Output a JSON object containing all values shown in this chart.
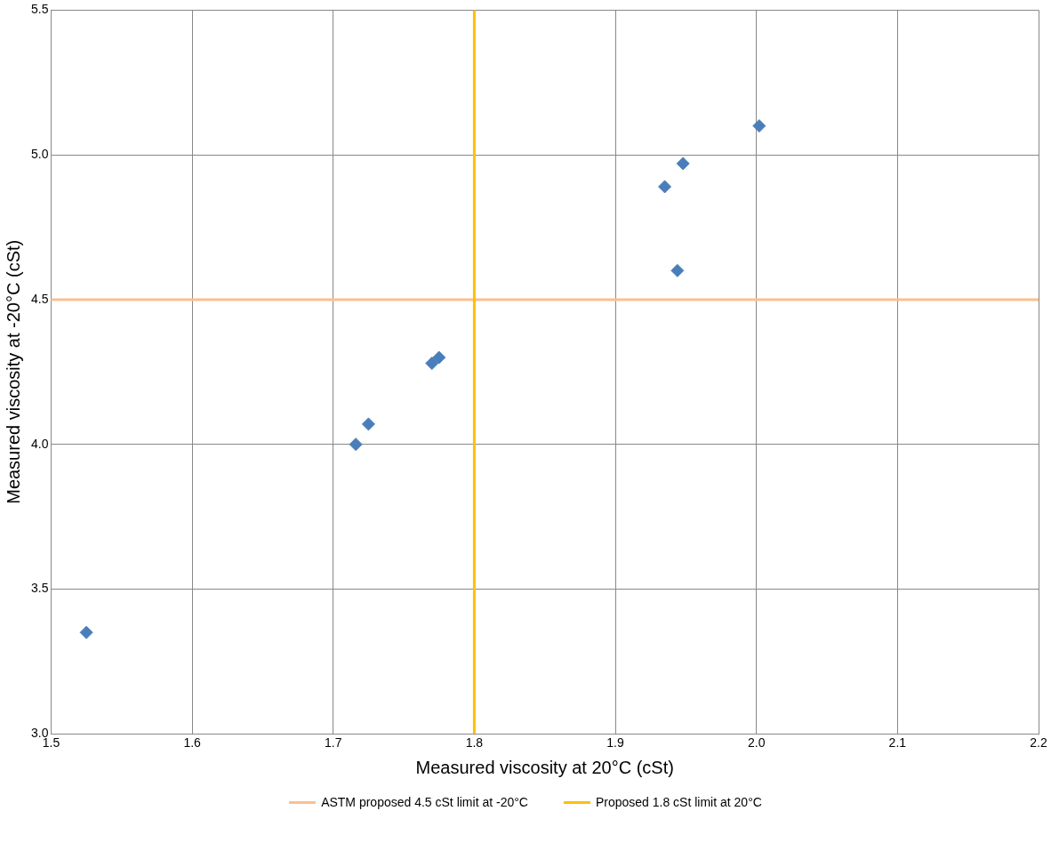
{
  "chart_data": {
    "type": "scatter",
    "xlabel": "Measured viscosity at 20°C (cSt)",
    "ylabel": "Measured viscosity at -20°C (cSt)",
    "x": [
      1.525,
      1.716,
      1.725,
      1.77,
      1.775,
      1.935,
      1.944,
      1.948,
      2.002
    ],
    "values": [
      3.35,
      4.0,
      4.07,
      4.28,
      4.3,
      4.89,
      4.6,
      4.97,
      5.1
    ],
    "color": "#4a7ebb",
    "marker": "diamond",
    "xlim": [
      1.5,
      2.2
    ],
    "xticks": [
      1.5,
      1.6,
      1.7,
      1.8,
      1.9,
      {
        "value": 2,
        "label": "2.0"
      },
      2.1,
      2.2
    ],
    "ylim": [
      3,
      5.5
    ],
    "yticks": [
      {
        "value": 3,
        "label": "3.0"
      },
      3.5,
      {
        "value": 4,
        "label": "4.0"
      },
      4.5,
      {
        "value": 5,
        "label": "5.0"
      },
      5.5
    ],
    "grid": true,
    "legend": "bottom",
    "ref_lines": [
      {
        "axis": "y",
        "value": 4.5,
        "label": "ASTM proposed 4.5 cSt limit at -20°C",
        "color": "#fac090"
      },
      {
        "axis": "x",
        "value": 1.8,
        "label": "Proposed 1.8 cSt limit at 20°C",
        "color": "#ffc000"
      }
    ]
  }
}
